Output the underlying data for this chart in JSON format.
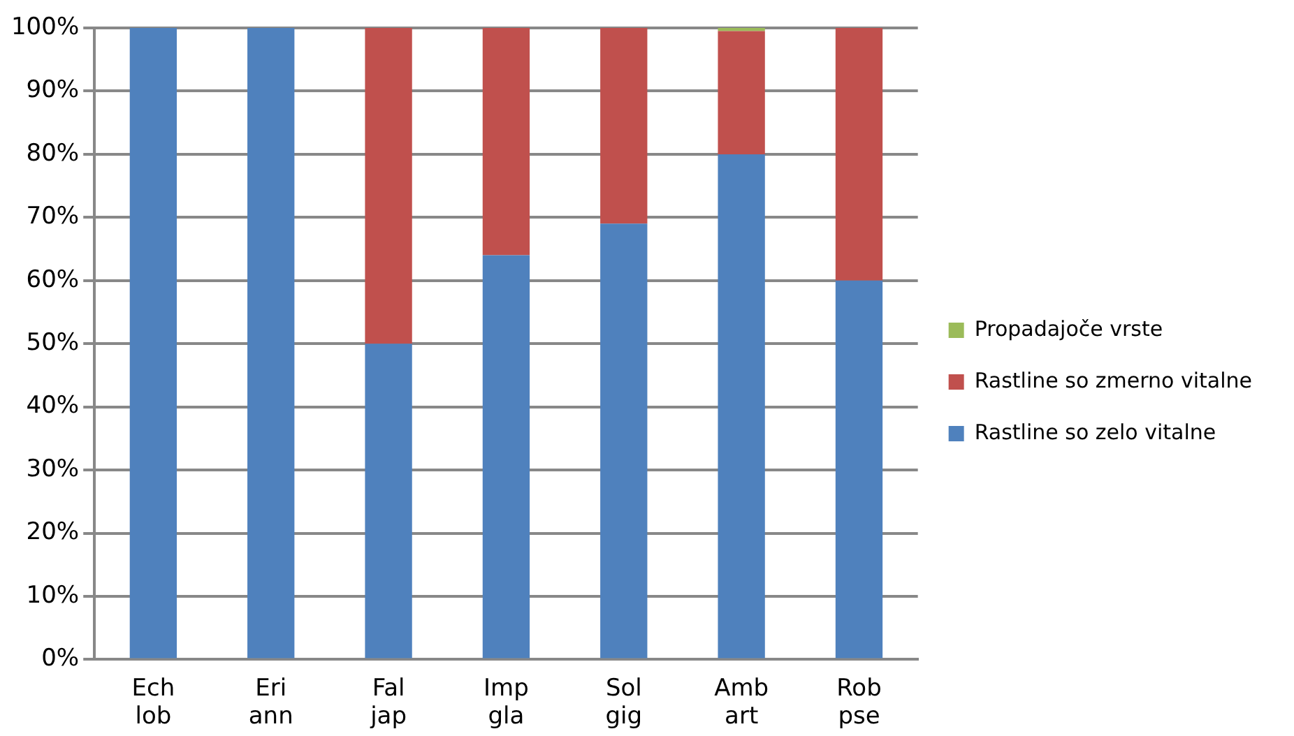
{
  "chart_data": {
    "type": "bar",
    "stacked": true,
    "categories": [
      "Ech lob",
      "Eri ann",
      "Fal jap",
      "Imp gla",
      "Sol gig",
      "Amb art",
      "Rob pse"
    ],
    "series": [
      {
        "name": "Rastline so zelo vitalne",
        "color": "#4f81bd",
        "values": [
          100,
          100,
          50,
          64,
          69,
          80,
          60
        ]
      },
      {
        "name": "Rastline so zmerno vitalne",
        "color": "#c0504d",
        "values": [
          0,
          0,
          50,
          36,
          31,
          19.5,
          40
        ]
      },
      {
        "name": "Propadajoče vrste",
        "color": "#9bbb59",
        "values": [
          0,
          0,
          0,
          0,
          0,
          0.5,
          0
        ]
      }
    ],
    "ylim": [
      0,
      100
    ],
    "yticks": [
      {
        "value": 0,
        "label": "0%"
      },
      {
        "value": 10,
        "label": "10%"
      },
      {
        "value": 20,
        "label": "20%"
      },
      {
        "value": 30,
        "label": "30%"
      },
      {
        "value": 40,
        "label": "40%"
      },
      {
        "value": 50,
        "label": "50%"
      },
      {
        "value": 60,
        "label": "60%"
      },
      {
        "value": 70,
        "label": "70%"
      },
      {
        "value": 80,
        "label": "80%"
      },
      {
        "value": 90,
        "label": "90%"
      },
      {
        "value": 100,
        "label": "100%"
      }
    ],
    "grid": "y",
    "legend": "right"
  }
}
